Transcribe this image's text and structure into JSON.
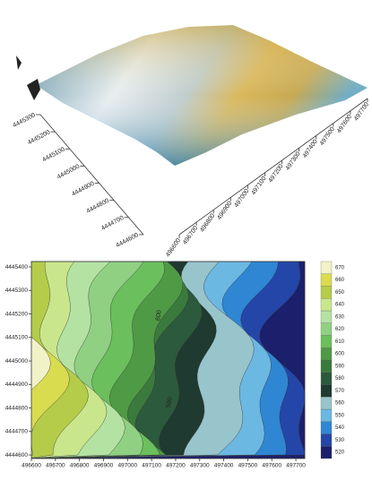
{
  "chart_data": [
    {
      "type": "surface",
      "xlim": [
        496600,
        497700
      ],
      "xticks": [
        496600,
        496700,
        496800,
        496900,
        497000,
        497100,
        497200,
        497300,
        497400,
        497500,
        497600,
        497700
      ],
      "ylim": [
        4444600,
        4445300
      ],
      "yticks": [
        4444600,
        4444700,
        4444800,
        4444900,
        4445000,
        4445100,
        4445200,
        4445300
      ]
    },
    {
      "type": "contour",
      "xlim": [
        496600,
        497737
      ],
      "xticks": [
        496600,
        496700,
        496800,
        496900,
        497000,
        497100,
        497200,
        497300,
        497400,
        497500,
        497600,
        497700
      ],
      "ylim": [
        4444585,
        4445423
      ],
      "yticks": [
        4444600,
        4444700,
        4444800,
        4444900,
        4445000,
        4445100,
        4445200,
        4445300,
        4445400
      ],
      "contour_labels": [
        "600",
        "590"
      ],
      "colorbar": {
        "ticks": [
          520,
          530,
          540,
          550,
          560,
          570,
          580,
          590,
          600,
          610,
          620,
          630,
          640,
          650,
          660,
          670
        ],
        "colors": [
          "#1c1f6b",
          "#2446a8",
          "#2f86d2",
          "#6bb8e2",
          "#98c4cc",
          "#1f3a30",
          "#2c5a3c",
          "#3b7a3d",
          "#4f9a45",
          "#6bbf5c",
          "#90d083",
          "#b4e2a2",
          "#c9e68c",
          "#b5cc4a",
          "#d9dc4e",
          "#f2f2c8"
        ]
      }
    }
  ]
}
